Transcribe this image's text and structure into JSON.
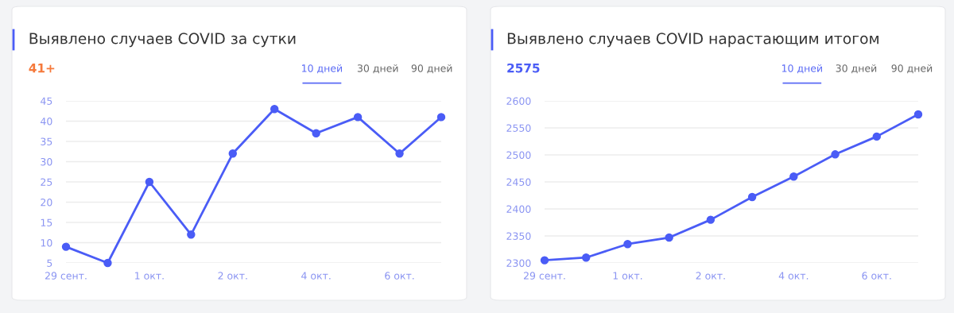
{
  "chart_data": [
    {
      "type": "line",
      "title": "Выявлено случаев COVID за сутки",
      "categories": [
        "29 сент.",
        null,
        "1 окт.",
        null,
        "2 окт.",
        null,
        "4 окт.",
        null,
        "6 окт.",
        null
      ],
      "series": [
        {
          "color": "#4a5cf6",
          "values": [
            9,
            5,
            25,
            12,
            32,
            43,
            37,
            41,
            32,
            41
          ]
        }
      ],
      "ylim": [
        5,
        45
      ],
      "yticks": [
        5,
        10,
        15,
        20,
        25,
        30,
        35,
        40,
        45
      ],
      "grid": "y",
      "marker": "circle",
      "line_style": "solid",
      "annotations": [
        "41+",
        "10 дней",
        "30 дней",
        "90 дней"
      ]
    },
    {
      "type": "line",
      "title": "Выявлено случаев COVID нарастающим итогом",
      "categories": [
        "29 сент.",
        null,
        "1 окт.",
        null,
        "2 окт.",
        null,
        "4 окт.",
        null,
        "6 окт.",
        null
      ],
      "series": [
        {
          "color": "#4a5cf6",
          "values": [
            2305,
            2310,
            2335,
            2347,
            2380,
            2422,
            2460,
            2501,
            2534,
            2575
          ]
        }
      ],
      "ylim": [
        2300,
        2600
      ],
      "yticks": [
        2300,
        2350,
        2400,
        2450,
        2500,
        2550,
        2600
      ],
      "grid": "y",
      "marker": "circle",
      "line_style": "solid",
      "annotations": [
        "2575",
        "10 дней",
        "30 дней",
        "90 дней"
      ]
    }
  ]
}
